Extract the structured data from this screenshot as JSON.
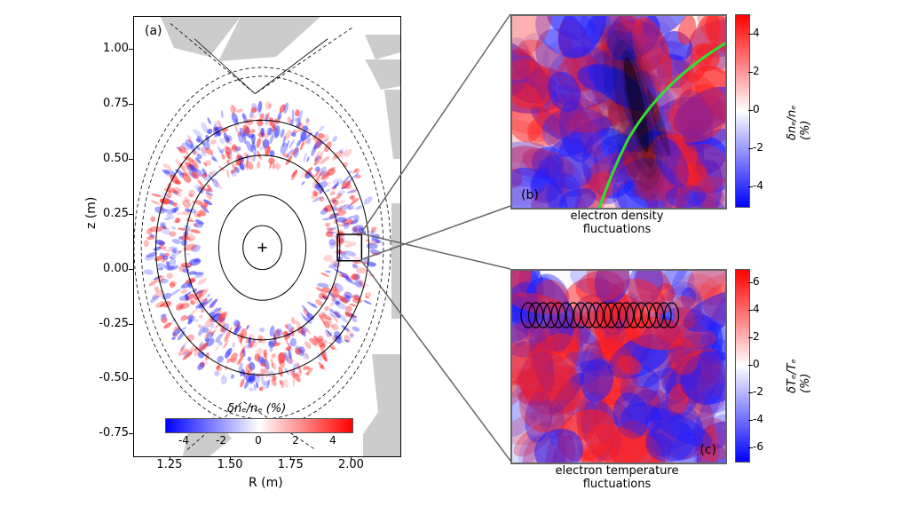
{
  "figure": {
    "panel_a": {
      "label": "(a)",
      "xaxis": {
        "label": "R (m)",
        "ticks": [
          "1.25",
          "1.50",
          "1.75",
          "2.00"
        ],
        "range": [
          1.1,
          2.2
        ]
      },
      "yaxis": {
        "label": "z (m)",
        "ticks": [
          "-0.75",
          "-0.50",
          "-0.25",
          "0.00",
          "0.25",
          "0.50",
          "0.75",
          "1.00"
        ],
        "range": [
          -0.85,
          1.15
        ]
      },
      "flux_surface_center": {
        "R": 1.63,
        "z": 0.1
      },
      "flux_surfaces_rx": [
        0.08,
        0.18,
        0.32,
        0.44
      ],
      "flux_surfaces_ry": [
        0.1,
        0.24,
        0.42,
        0.58
      ],
      "inset_rect": {
        "R": [
          1.94,
          2.04
        ],
        "z": [
          0.04,
          0.16
        ]
      },
      "colorbar": {
        "label": "δnₑ/nₑ (%)",
        "ticks": [
          "-4",
          "-2",
          "0",
          "2",
          "4"
        ],
        "range": [
          -5,
          5
        ],
        "cmap_stops": [
          {
            "p": 0,
            "c": "#0000ff"
          },
          {
            "p": 0.25,
            "c": "#7f7fff"
          },
          {
            "p": 0.5,
            "c": "#ffffff"
          },
          {
            "p": 0.75,
            "c": "#ff7f7f"
          },
          {
            "p": 1,
            "c": "#ff0000"
          }
        ]
      },
      "wall_fill": "#cccccc"
    },
    "panel_b": {
      "label": "(b)",
      "title_line1": "electron density",
      "title_line2": "fluctuations",
      "flux_line_color": "#2fe12f",
      "beam_color": "#303030",
      "colorbar": {
        "label": "δnₑ/nₑ (%)",
        "ticks": [
          "-4",
          "-2",
          "0",
          "2",
          "4"
        ],
        "range": [
          -5,
          5
        ]
      }
    },
    "panel_c": {
      "label": "(c)",
      "title_line1": "electron temperature",
      "title_line2": "fluctuations",
      "probe_color": "#000000",
      "colorbar": {
        "label": "δTₑ/Tₑ (%)",
        "ticks": [
          "-6",
          "-4",
          "-2",
          "0",
          "2",
          "4",
          "6"
        ],
        "range": [
          -7,
          7
        ]
      }
    },
    "connector_color": "#666666",
    "cmap_stops": [
      {
        "p": 0,
        "c": "#0000ff"
      },
      {
        "p": 0.25,
        "c": "#7f7fff"
      },
      {
        "p": 0.5,
        "c": "#ffffff"
      },
      {
        "p": 0.75,
        "c": "#ff7f7f"
      },
      {
        "p": 1,
        "c": "#ff0000"
      }
    ]
  }
}
